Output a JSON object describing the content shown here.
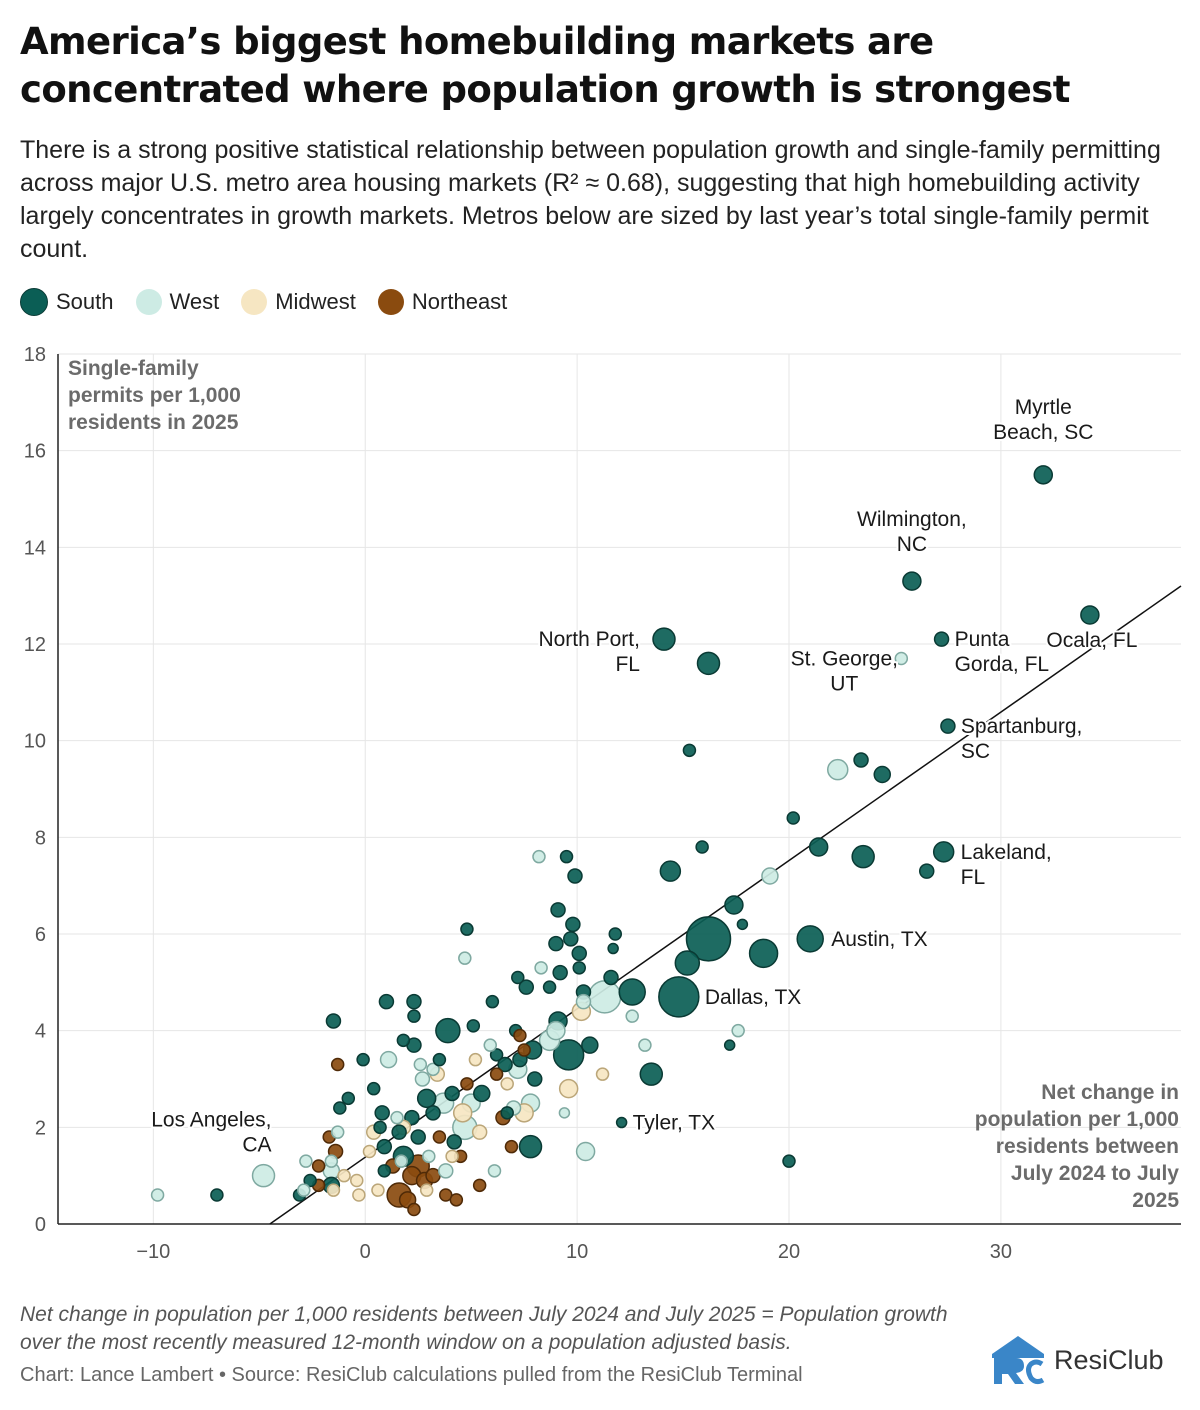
{
  "header": {
    "title": "America’s biggest homebuilding markets are concentrated where population growth is strongest",
    "subtitle": "There is a strong positive statistical relationship between population growth and single-family permitting across major U.S. metro area housing markets (R² ≈ 0.68), suggesting that high homebuilding activity largely concentrates in growth markets. Metros below are sized by last year’s total single-family permit count."
  },
  "legend": [
    {
      "name": "South",
      "color": "#0b5e55"
    },
    {
      "name": "West",
      "color": "#cdebe4"
    },
    {
      "name": "Midwest",
      "color": "#f6e6c2"
    },
    {
      "name": "Northeast",
      "color": "#8a4b0f"
    }
  ],
  "footer": {
    "footnote": "Net change in population per 1,000 residents between July 2024 and July 2025 = Population growth over the most recently measured 12-month window on a population adjusted basis.",
    "credit": "Chart: Lance Lambert • Source: ResiClub calculations pulled from the ResiClub Terminal",
    "logo_text": "ResiClub"
  },
  "chart_data": {
    "type": "scatter",
    "ylabel": "Single-family permits per 1,000 residents in 2025",
    "xlabel": "Net change in population per 1,000 residents between July 2024 to July 2025",
    "xlim": [
      -14.5,
      38.5
    ],
    "ylim": [
      0,
      18
    ],
    "x_ticks": [
      -10,
      0,
      10,
      20,
      30
    ],
    "y_ticks": [
      0,
      2,
      4,
      6,
      8,
      10,
      12,
      14,
      16,
      18
    ],
    "grid": true,
    "legend_position": "top-left",
    "trendline": {
      "x": [
        -4.5,
        38.5
      ],
      "y": [
        0,
        13.2
      ]
    },
    "size_encoding": "last year’s total single-family permit count",
    "labeled_points": [
      {
        "label": "Myrtle Beach, SC",
        "region": "South",
        "x": 32,
        "y": 15.5,
        "size": 9
      },
      {
        "label": "Wilmington, NC",
        "region": "South",
        "x": 25.8,
        "y": 13.3,
        "size": 9
      },
      {
        "label": "Ocala, FL",
        "region": "South",
        "x": 34.2,
        "y": 12.6,
        "size": 9
      },
      {
        "label": "Punta Gorda, FL",
        "region": "South",
        "x": 27.2,
        "y": 12.1,
        "size": 7
      },
      {
        "label": "North Port, FL",
        "region": "South",
        "x": 14.1,
        "y": 12.1,
        "size": 11
      },
      {
        "label": "St. George, UT",
        "region": "West",
        "x": 25.3,
        "y": 11.7,
        "size": 6
      },
      {
        "label": "Spartanburg, SC",
        "region": "South",
        "x": 27.5,
        "y": 10.3,
        "size": 7
      },
      {
        "label": "Lakeland, FL",
        "region": "South",
        "x": 27.3,
        "y": 7.7,
        "size": 10
      },
      {
        "label": "Austin, TX",
        "region": "South",
        "x": 21,
        "y": 5.9,
        "size": 13
      },
      {
        "label": "Dallas, TX",
        "region": "South",
        "x": 14.8,
        "y": 4.7,
        "size": 20
      },
      {
        "label": "Tyler, TX",
        "region": "South",
        "x": 12.1,
        "y": 2.1,
        "size": 5
      },
      {
        "label": "Los Angeles, CA",
        "region": "West",
        "x": -4.8,
        "y": 1.0,
        "size": 11
      }
    ],
    "points": [
      {
        "region": "South",
        "x": 16.2,
        "y": 5.9,
        "size": 22
      },
      {
        "region": "South",
        "x": 16.2,
        "y": 11.6,
        "size": 11
      },
      {
        "region": "South",
        "x": 23.5,
        "y": 7.6,
        "size": 11
      },
      {
        "region": "South",
        "x": 18.8,
        "y": 5.6,
        "size": 14
      },
      {
        "region": "South",
        "x": 9.6,
        "y": 3.5,
        "size": 15
      },
      {
        "region": "West",
        "x": 11.3,
        "y": 4.7,
        "size": 16
      },
      {
        "region": "South",
        "x": 12.6,
        "y": 4.8,
        "size": 13
      },
      {
        "region": "South",
        "x": 15.2,
        "y": 5.4,
        "size": 12
      },
      {
        "region": "South",
        "x": 3.9,
        "y": 4.0,
        "size": 12
      },
      {
        "region": "South",
        "x": 13.5,
        "y": 3.1,
        "size": 11
      },
      {
        "region": "South",
        "x": 7.8,
        "y": 1.6,
        "size": 11
      },
      {
        "region": "South",
        "x": 14.4,
        "y": 7.3,
        "size": 10
      },
      {
        "region": "South",
        "x": 17.4,
        "y": 6.6,
        "size": 9
      },
      {
        "region": "South",
        "x": 21.4,
        "y": 7.8,
        "size": 9
      },
      {
        "region": "South",
        "x": 23.4,
        "y": 9.6,
        "size": 7
      },
      {
        "region": "South",
        "x": 24.4,
        "y": 9.3,
        "size": 8
      },
      {
        "region": "West",
        "x": 22.3,
        "y": 9.4,
        "size": 10
      },
      {
        "region": "West",
        "x": 19.1,
        "y": 7.2,
        "size": 8
      },
      {
        "region": "South",
        "x": 20.2,
        "y": 8.4,
        "size": 6
      },
      {
        "region": "South",
        "x": 15.3,
        "y": 9.8,
        "size": 6
      },
      {
        "region": "South",
        "x": 15.9,
        "y": 7.8,
        "size": 6
      },
      {
        "region": "South",
        "x": 26.5,
        "y": 7.3,
        "size": 7
      },
      {
        "region": "South",
        "x": 20,
        "y": 1.3,
        "size": 6
      },
      {
        "region": "South",
        "x": 17.8,
        "y": 6.2,
        "size": 5
      },
      {
        "region": "West",
        "x": 17.6,
        "y": 4.0,
        "size": 6
      },
      {
        "region": "South",
        "x": 17.2,
        "y": 3.7,
        "size": 5
      },
      {
        "region": "South",
        "x": 9.5,
        "y": 7.6,
        "size": 6
      },
      {
        "region": "West",
        "x": 8.2,
        "y": 7.6,
        "size": 6
      },
      {
        "region": "South",
        "x": 9.9,
        "y": 7.2,
        "size": 7
      },
      {
        "region": "South",
        "x": 9.1,
        "y": 6.5,
        "size": 7
      },
      {
        "region": "South",
        "x": 9.8,
        "y": 6.2,
        "size": 7
      },
      {
        "region": "South",
        "x": 9.7,
        "y": 5.9,
        "size": 7
      },
      {
        "region": "South",
        "x": 9.0,
        "y": 5.8,
        "size": 7
      },
      {
        "region": "South",
        "x": 10.1,
        "y": 5.6,
        "size": 7
      },
      {
        "region": "South",
        "x": 11.8,
        "y": 6.0,
        "size": 6
      },
      {
        "region": "South",
        "x": 11.7,
        "y": 5.7,
        "size": 5
      },
      {
        "region": "South",
        "x": 11.6,
        "y": 5.1,
        "size": 7
      },
      {
        "region": "South",
        "x": 10.1,
        "y": 5.3,
        "size": 6
      },
      {
        "region": "South",
        "x": 9.2,
        "y": 5.2,
        "size": 7
      },
      {
        "region": "West",
        "x": 8.3,
        "y": 5.3,
        "size": 6
      },
      {
        "region": "South",
        "x": 7.2,
        "y": 5.1,
        "size": 6
      },
      {
        "region": "South",
        "x": 7.6,
        "y": 4.9,
        "size": 7
      },
      {
        "region": "South",
        "x": 8.7,
        "y": 4.9,
        "size": 6
      },
      {
        "region": "South",
        "x": 10.3,
        "y": 4.8,
        "size": 7
      },
      {
        "region": "Midwest",
        "x": 10.2,
        "y": 4.4,
        "size": 9
      },
      {
        "region": "West",
        "x": 10.3,
        "y": 4.6,
        "size": 7
      },
      {
        "region": "West",
        "x": 12.6,
        "y": 4.3,
        "size": 6
      },
      {
        "region": "South",
        "x": 9.1,
        "y": 4.2,
        "size": 9
      },
      {
        "region": "West",
        "x": 9.0,
        "y": 4.0,
        "size": 9
      },
      {
        "region": "West",
        "x": 8.7,
        "y": 3.8,
        "size": 10
      },
      {
        "region": "South",
        "x": 7.9,
        "y": 3.6,
        "size": 9
      },
      {
        "region": "South",
        "x": 7.3,
        "y": 3.4,
        "size": 7
      },
      {
        "region": "South",
        "x": 6.6,
        "y": 3.3,
        "size": 7
      },
      {
        "region": "South",
        "x": 10.6,
        "y": 3.7,
        "size": 8
      },
      {
        "region": "West",
        "x": 7.2,
        "y": 3.2,
        "size": 9
      },
      {
        "region": "South",
        "x": 7.1,
        "y": 4.0,
        "size": 6
      },
      {
        "region": "Northeast",
        "x": 7.5,
        "y": 3.6,
        "size": 6
      },
      {
        "region": "Northeast",
        "x": 7.3,
        "y": 3.9,
        "size": 6
      },
      {
        "region": "South",
        "x": 8.0,
        "y": 3.0,
        "size": 7
      },
      {
        "region": "South",
        "x": 6.2,
        "y": 3.5,
        "size": 6
      },
      {
        "region": "West",
        "x": 5.9,
        "y": 3.7,
        "size": 6
      },
      {
        "region": "Midwest",
        "x": 5.2,
        "y": 3.4,
        "size": 6
      },
      {
        "region": "West",
        "x": 13.2,
        "y": 3.7,
        "size": 6
      },
      {
        "region": "Midwest",
        "x": 11.2,
        "y": 3.1,
        "size": 6
      },
      {
        "region": "Midwest",
        "x": 9.6,
        "y": 2.8,
        "size": 9
      },
      {
        "region": "West",
        "x": 9.4,
        "y": 2.3,
        "size": 5
      },
      {
        "region": "West",
        "x": 10.4,
        "y": 1.5,
        "size": 9
      },
      {
        "region": "West",
        "x": 7.8,
        "y": 2.5,
        "size": 9
      },
      {
        "region": "Midwest",
        "x": 7.5,
        "y": 2.3,
        "size": 9
      },
      {
        "region": "West",
        "x": 7.0,
        "y": 2.4,
        "size": 7
      },
      {
        "region": "South",
        "x": 6.7,
        "y": 2.3,
        "size": 6
      },
      {
        "region": "Northeast",
        "x": 6.5,
        "y": 2.2,
        "size": 7
      },
      {
        "region": "Northeast",
        "x": 6.9,
        "y": 1.6,
        "size": 6
      },
      {
        "region": "South",
        "x": 5.5,
        "y": 2.7,
        "size": 8
      },
      {
        "region": "West",
        "x": 5.0,
        "y": 2.5,
        "size": 9
      },
      {
        "region": "Midwest",
        "x": 4.6,
        "y": 2.3,
        "size": 9
      },
      {
        "region": "West",
        "x": 4.7,
        "y": 2.0,
        "size": 12
      },
      {
        "region": "South",
        "x": 4.1,
        "y": 2.7,
        "size": 7
      },
      {
        "region": "West",
        "x": 3.7,
        "y": 2.5,
        "size": 10
      },
      {
        "region": "South",
        "x": 3.2,
        "y": 2.3,
        "size": 7
      },
      {
        "region": "South",
        "x": 2.9,
        "y": 2.6,
        "size": 9
      },
      {
        "region": "Midwest",
        "x": 3.4,
        "y": 3.1,
        "size": 7
      },
      {
        "region": "West",
        "x": 2.7,
        "y": 3.0,
        "size": 7
      },
      {
        "region": "West",
        "x": 2.6,
        "y": 3.3,
        "size": 6
      },
      {
        "region": "West",
        "x": 3.2,
        "y": 3.2,
        "size": 6
      },
      {
        "region": "South",
        "x": 3.5,
        "y": 3.4,
        "size": 6
      },
      {
        "region": "West",
        "x": 1.1,
        "y": 3.4,
        "size": 8
      },
      {
        "region": "South",
        "x": 1.8,
        "y": 3.8,
        "size": 6
      },
      {
        "region": "South",
        "x": 2.3,
        "y": 3.7,
        "size": 7
      },
      {
        "region": "South",
        "x": 2.3,
        "y": 4.3,
        "size": 6
      },
      {
        "region": "South",
        "x": 2.3,
        "y": 4.6,
        "size": 7
      },
      {
        "region": "South",
        "x": 1.0,
        "y": 4.6,
        "size": 7
      },
      {
        "region": "South",
        "x": -1.5,
        "y": 4.2,
        "size": 7
      },
      {
        "region": "South",
        "x": 4.8,
        "y": 6.1,
        "size": 6
      },
      {
        "region": "West",
        "x": 4.7,
        "y": 5.5,
        "size": 6
      },
      {
        "region": "South",
        "x": 6.0,
        "y": 4.6,
        "size": 6
      },
      {
        "region": "South",
        "x": 5.1,
        "y": 4.1,
        "size": 6
      },
      {
        "region": "Northeast",
        "x": 6.2,
        "y": 3.1,
        "size": 6
      },
      {
        "region": "Northeast",
        "x": 4.8,
        "y": 2.9,
        "size": 6
      },
      {
        "region": "Midwest",
        "x": 6.7,
        "y": 2.9,
        "size": 6
      },
      {
        "region": "South",
        "x": -0.1,
        "y": 3.4,
        "size": 6
      },
      {
        "region": "Northeast",
        "x": -1.3,
        "y": 3.3,
        "size": 6
      },
      {
        "region": "South",
        "x": 0.4,
        "y": 2.8,
        "size": 6
      },
      {
        "region": "South",
        "x": -0.8,
        "y": 2.6,
        "size": 6
      },
      {
        "region": "South",
        "x": -1.2,
        "y": 2.4,
        "size": 6
      },
      {
        "region": "South",
        "x": 0.8,
        "y": 2.3,
        "size": 7
      },
      {
        "region": "West",
        "x": 1.5,
        "y": 2.2,
        "size": 6
      },
      {
        "region": "South",
        "x": 2.2,
        "y": 2.2,
        "size": 7
      },
      {
        "region": "Midwest",
        "x": 1.8,
        "y": 2.0,
        "size": 7
      },
      {
        "region": "South",
        "x": 0.7,
        "y": 2.0,
        "size": 6
      },
      {
        "region": "South",
        "x": 1.6,
        "y": 1.9,
        "size": 7
      },
      {
        "region": "Midwest",
        "x": 0.4,
        "y": 1.9,
        "size": 7
      },
      {
        "region": "South",
        "x": 2.5,
        "y": 1.8,
        "size": 7
      },
      {
        "region": "Midwest",
        "x": 5.4,
        "y": 1.9,
        "size": 7
      },
      {
        "region": "South",
        "x": 4.2,
        "y": 1.7,
        "size": 7
      },
      {
        "region": "Northeast",
        "x": 3.5,
        "y": 1.8,
        "size": 6
      },
      {
        "region": "South",
        "x": 0.9,
        "y": 1.6,
        "size": 7
      },
      {
        "region": "Midwest",
        "x": 0.2,
        "y": 1.5,
        "size": 6
      },
      {
        "region": "West",
        "x": 1.7,
        "y": 1.3,
        "size": 6
      },
      {
        "region": "South",
        "x": 1.8,
        "y": 1.4,
        "size": 10
      },
      {
        "region": "South",
        "x": 0.9,
        "y": 1.1,
        "size": 6
      },
      {
        "region": "Northeast",
        "x": 1.3,
        "y": 1.2,
        "size": 7
      },
      {
        "region": "Northeast",
        "x": 2.5,
        "y": 1.2,
        "size": 11
      },
      {
        "region": "Northeast",
        "x": 2.2,
        "y": 1.0,
        "size": 9
      },
      {
        "region": "Northeast",
        "x": 2.8,
        "y": 0.9,
        "size": 8
      },
      {
        "region": "Northeast",
        "x": 1.6,
        "y": 0.6,
        "size": 12
      },
      {
        "region": "Northeast",
        "x": 2.0,
        "y": 0.5,
        "size": 8
      },
      {
        "region": "Northeast",
        "x": 2.3,
        "y": 0.3,
        "size": 6
      },
      {
        "region": "Northeast",
        "x": 3.2,
        "y": 1.0,
        "size": 7
      },
      {
        "region": "Northeast",
        "x": 3.8,
        "y": 0.6,
        "size": 6
      },
      {
        "region": "Northeast",
        "x": 4.3,
        "y": 0.5,
        "size": 6
      },
      {
        "region": "Northeast",
        "x": 4.5,
        "y": 1.4,
        "size": 6
      },
      {
        "region": "Northeast",
        "x": 5.4,
        "y": 0.8,
        "size": 6
      },
      {
        "region": "West",
        "x": 3.8,
        "y": 1.1,
        "size": 7
      },
      {
        "region": "West",
        "x": 6.1,
        "y": 1.1,
        "size": 6
      },
      {
        "region": "West",
        "x": 3.0,
        "y": 1.4,
        "size": 6
      },
      {
        "region": "Midwest",
        "x": 4.1,
        "y": 1.4,
        "size": 6
      },
      {
        "region": "Midwest",
        "x": 2.9,
        "y": 0.7,
        "size": 6
      },
      {
        "region": "Midwest",
        "x": 0.6,
        "y": 0.7,
        "size": 6
      },
      {
        "region": "Midwest",
        "x": -0.4,
        "y": 0.9,
        "size": 6
      },
      {
        "region": "Midwest",
        "x": -1.0,
        "y": 1.0,
        "size": 6
      },
      {
        "region": "Midwest",
        "x": -0.3,
        "y": 0.6,
        "size": 6
      },
      {
        "region": "Midwest",
        "x": -1.5,
        "y": 0.7,
        "size": 6
      },
      {
        "region": "Northeast",
        "x": -1.4,
        "y": 1.5,
        "size": 7
      },
      {
        "region": "Northeast",
        "x": -1.7,
        "y": 1.8,
        "size": 6
      },
      {
        "region": "Northeast",
        "x": -2.2,
        "y": 0.8,
        "size": 6
      },
      {
        "region": "Northeast",
        "x": -2.2,
        "y": 1.2,
        "size": 6
      },
      {
        "region": "West",
        "x": -1.6,
        "y": 1.3,
        "size": 6
      },
      {
        "region": "West",
        "x": -2.8,
        "y": 1.3,
        "size": 6
      },
      {
        "region": "West",
        "x": -1.6,
        "y": 1.1,
        "size": 8
      },
      {
        "region": "South",
        "x": -1.6,
        "y": 0.8,
        "size": 8
      },
      {
        "region": "South",
        "x": -2.6,
        "y": 0.9,
        "size": 6
      },
      {
        "region": "South",
        "x": -3.1,
        "y": 0.6,
        "size": 6
      },
      {
        "region": "West",
        "x": -2.9,
        "y": 0.7,
        "size": 6
      },
      {
        "region": "West",
        "x": -1.3,
        "y": 1.9,
        "size": 6
      },
      {
        "region": "South",
        "x": -7.0,
        "y": 0.6,
        "size": 6
      },
      {
        "region": "West",
        "x": -9.8,
        "y": 0.6,
        "size": 6
      }
    ]
  }
}
